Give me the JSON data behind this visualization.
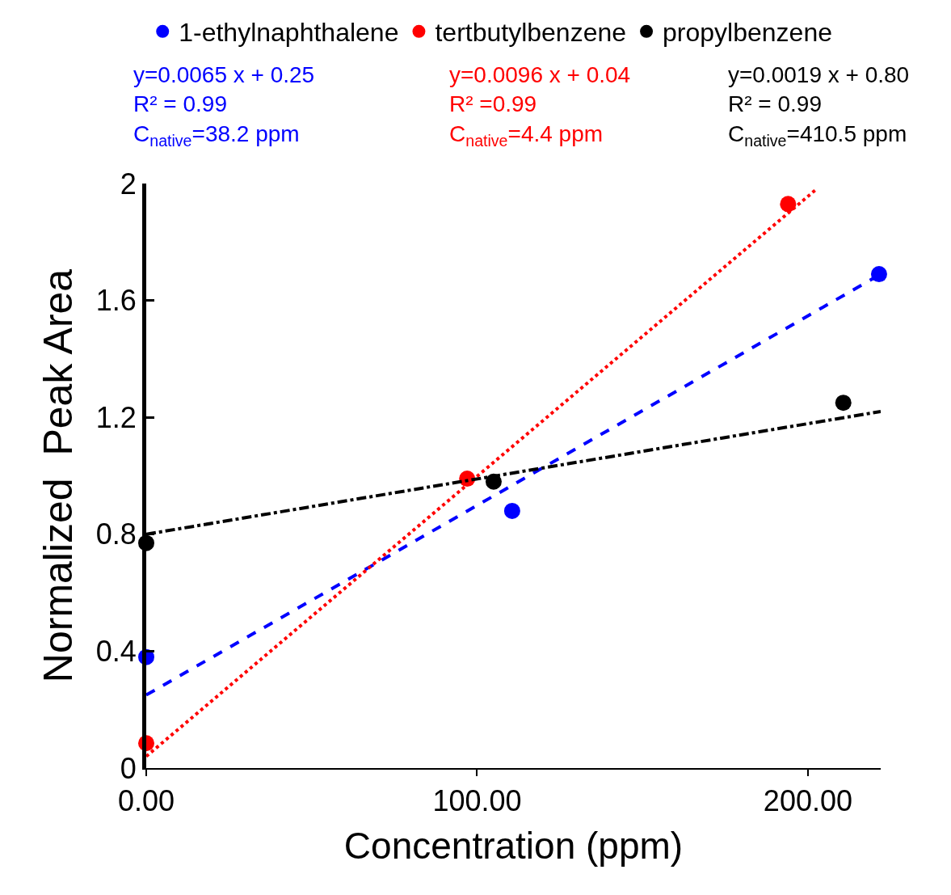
{
  "chart_data": {
    "type": "scatter",
    "xlabel": "Concentration (ppm)",
    "ylabel": "Normalized  Peak Area",
    "xlim": [
      0,
      222
    ],
    "ylim": [
      0,
      2
    ],
    "xticks": [
      {
        "value": 0,
        "label": "0.00"
      },
      {
        "value": 100,
        "label": "100.00"
      },
      {
        "value": 200,
        "label": "200.00"
      }
    ],
    "yticks": [
      0,
      0.4,
      0.8,
      1.2,
      1.6,
      2
    ],
    "legend": "top",
    "marker": "circle",
    "series": [
      {
        "name": "1-ethylnaphthalene",
        "color": "#0000ff",
        "x": [
          0,
          110.6,
          221.5
        ],
        "values": [
          0.38,
          0.88,
          1.69
        ]
      },
      {
        "name": "tertbutylbenzene",
        "color": "#ff0000",
        "x": [
          0,
          97,
          194
        ],
        "values": [
          0.085,
          0.99,
          1.93
        ]
      },
      {
        "name": "propylbenzene",
        "color": "#000000",
        "x": [
          0,
          105,
          210.7
        ],
        "values": [
          0.77,
          0.98,
          1.25
        ]
      },
      {
        "type": "line",
        "color": "#0000ff",
        "line_style": "dashed",
        "marker": "none",
        "x": [
          0,
          222
        ],
        "values": [
          0.25,
          1.69
        ]
      },
      {
        "type": "line",
        "color": "#ff0000",
        "line_style": "dotted",
        "marker": "none",
        "x": [
          0,
          202.5
        ],
        "values": [
          0.04,
          1.98
        ]
      },
      {
        "type": "line",
        "color": "#000000",
        "line_style": "dashdot",
        "marker": "none",
        "x": [
          0,
          222
        ],
        "values": [
          0.8,
          1.22
        ]
      }
    ],
    "annotations": [
      "y=0.0065 x + 0.25\nR² = 0.99\nC$_{native}$=38.2 ppm",
      "y=0.0096 x + 0.04\nR² =0.99\nC$_{native}$=4.4 ppm",
      "y=0.0019 x + 0.80\nR² = 0.99\nC$_{native}$=410.5 ppm"
    ]
  }
}
